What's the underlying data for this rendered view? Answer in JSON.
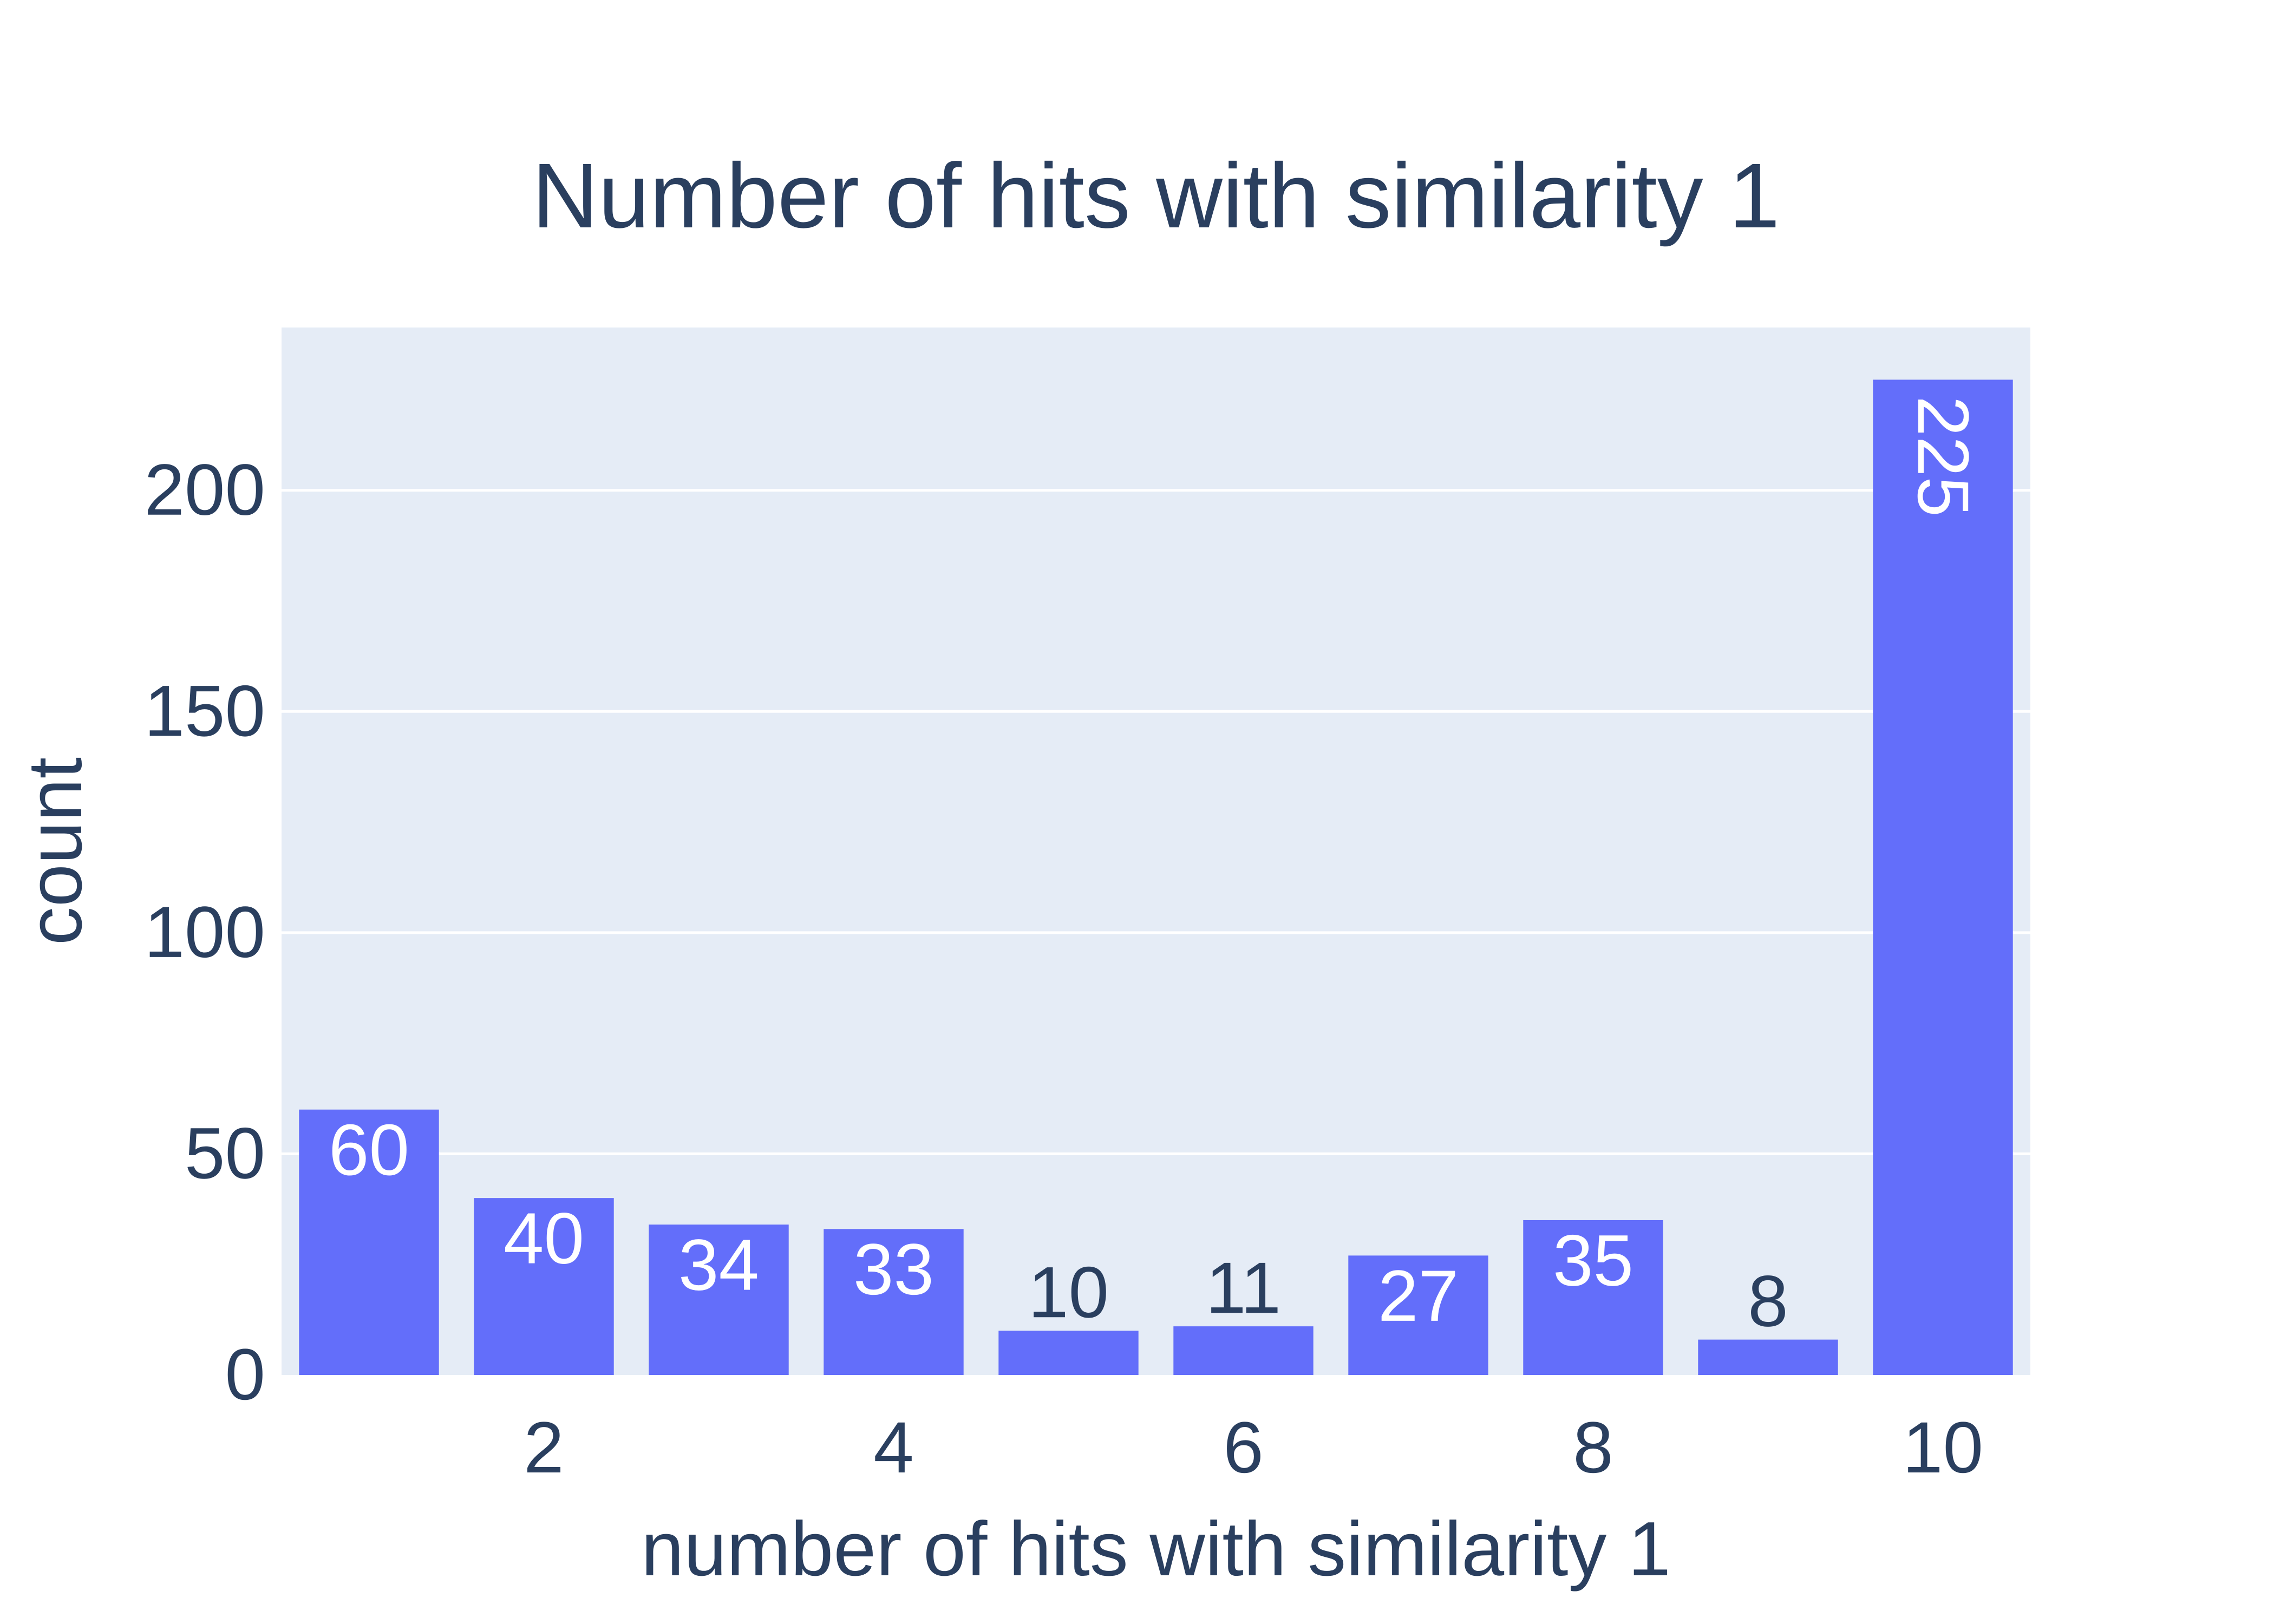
{
  "chart_data": {
    "type": "bar",
    "title": "Number of hits with similarity 1",
    "xlabel": "number of hits with similarity 1",
    "ylabel": "count",
    "x": [
      1,
      2,
      3,
      4,
      5,
      6,
      7,
      8,
      9,
      10
    ],
    "values": [
      60,
      40,
      34,
      33,
      10,
      11,
      27,
      35,
      8,
      225
    ],
    "xlim": [
      0.5,
      10.5
    ],
    "ylim": [
      0,
      236.8
    ],
    "xticks": [
      2,
      4,
      6,
      8,
      10
    ],
    "yticks": [
      0,
      50,
      100,
      150,
      200
    ],
    "grid": true,
    "legend": "none",
    "colors": {
      "bar": "#636efa",
      "plot_background": "#e5ecf6",
      "gridline": "#ffffff",
      "text": "#2a3f5f",
      "label_inside": "#ffffff"
    }
  }
}
